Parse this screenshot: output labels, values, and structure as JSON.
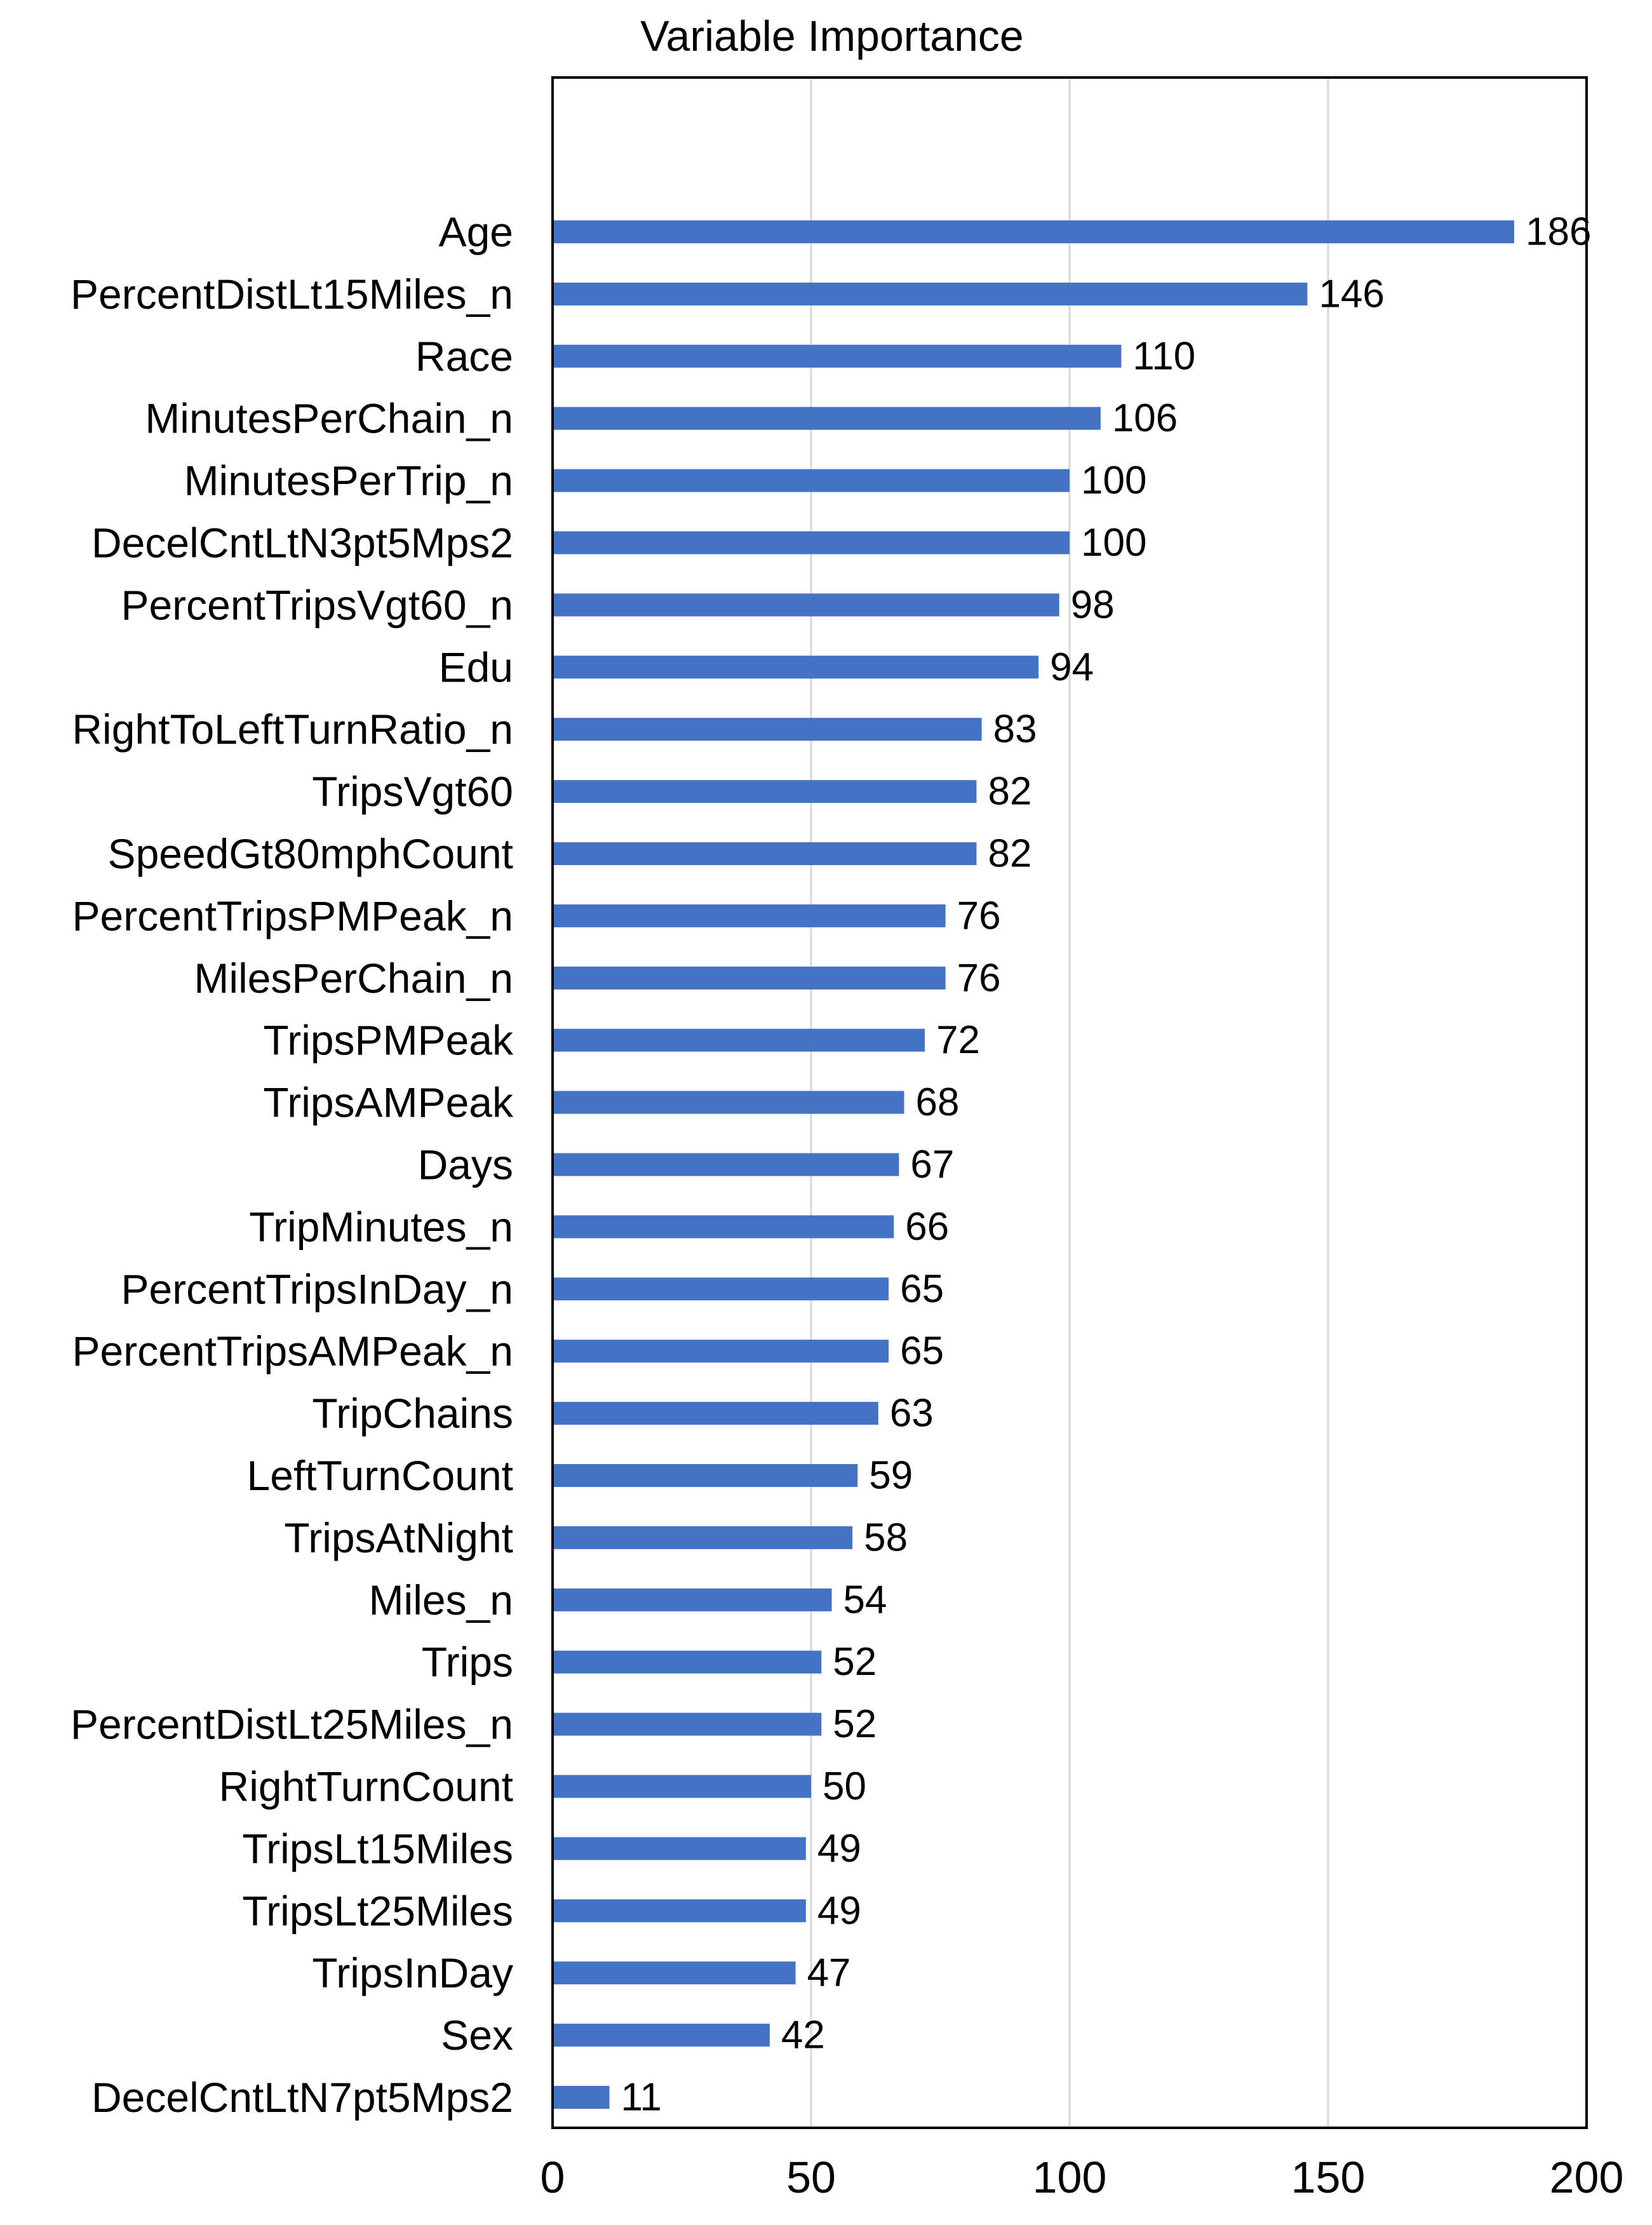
{
  "chart_data": {
    "type": "bar",
    "orientation": "horizontal",
    "title": "Variable Importance",
    "xlabel": "",
    "ylabel": "",
    "xlim": [
      0,
      200
    ],
    "x_ticks": [
      0,
      50,
      100,
      150,
      200
    ],
    "grid": "vertical",
    "legend": "none",
    "bar_color": "#4472C4",
    "categories": [
      "Age",
      "PercentDistLt15Miles_n",
      "Race",
      "MinutesPerChain_n",
      "MinutesPerTrip_n",
      "DecelCntLtN3pt5Mps2",
      "PercentTripsVgt60_n",
      "Edu",
      "RightToLeftTurnRatio_n",
      "TripsVgt60",
      "SpeedGt80mphCount",
      "PercentTripsPMPeak_n",
      "MilesPerChain_n",
      "TripsPMPeak",
      "TripsAMPeak",
      "Days",
      "TripMinutes_n",
      "PercentTripsInDay_n",
      "PercentTripsAMPeak_n",
      "TripChains",
      "LeftTurnCount",
      "TripsAtNight",
      "Miles_n",
      "Trips",
      "PercentDistLt25Miles_n",
      "RightTurnCount",
      "TripsLt15Miles",
      "TripsLt25Miles",
      "TripsInDay",
      "Sex",
      "DecelCntLtN7pt5Mps2"
    ],
    "values": [
      186,
      146,
      110,
      106,
      100,
      100,
      98,
      94,
      83,
      82,
      82,
      76,
      76,
      72,
      68,
      67,
      66,
      65,
      65,
      63,
      59,
      58,
      54,
      52,
      52,
      50,
      49,
      49,
      47,
      42,
      11
    ]
  }
}
